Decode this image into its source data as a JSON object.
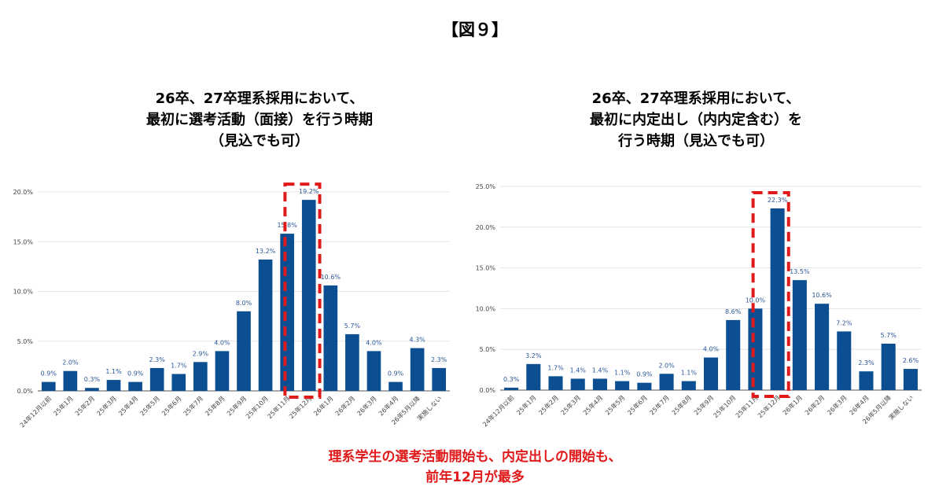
{
  "figure_label": "【図９】",
  "conclusion": {
    "line1": "理系学生の選考活動開始も、内定出しの開始も、",
    "line2": "前年12月が最多"
  },
  "colors": {
    "bar": "#0b4f92",
    "highlight": "#e01a1a",
    "grid": "#dddddd",
    "label": "#2b5797"
  },
  "chart_data": [
    {
      "type": "bar",
      "title_lines": [
        "26卒、27卒理系採用において、",
        "最初に選考活動（面接）を行う時期",
        "（見込でも可）"
      ],
      "categories": [
        "24年12月以前",
        "25年1月",
        "25年2月",
        "25年3月",
        "25年4月",
        "25年5月",
        "25年6月",
        "25年7月",
        "25年8月",
        "25年9月",
        "25年10月",
        "25年11月",
        "25年12月",
        "26年1月",
        "26年2月",
        "26年3月",
        "26年4月",
        "26年5月以降",
        "実施しない"
      ],
      "values": [
        0.9,
        2.0,
        0.3,
        1.1,
        0.9,
        2.3,
        1.7,
        2.9,
        4.0,
        8.0,
        13.2,
        15.8,
        19.2,
        10.6,
        5.7,
        4.0,
        0.9,
        4.3,
        2.3
      ],
      "data_labels": [
        "0.9%",
        "2.0%",
        "0.3%",
        "1.1%",
        "0.9%",
        "2.3%",
        "1.7%",
        "2.9%",
        "4.0%",
        "8.0%",
        "13.2%",
        "15.8%",
        "19.2%",
        "10.6%",
        "5.7%",
        "4.0%",
        "0.9%",
        "4.3%",
        "2.3%"
      ],
      "yticks": [
        0,
        5,
        10,
        15,
        20
      ],
      "ytick_labels": [
        "0.0%",
        "5.0%",
        "10.0%",
        "15.0%",
        "20.0%"
      ],
      "ylim": [
        0,
        20
      ],
      "highlight_index": 12,
      "grid": true
    },
    {
      "type": "bar",
      "title_lines": [
        "26卒、27卒理系採用において、",
        "最初に内定出し（内内定含む）を",
        "行う時期（見込でも可）"
      ],
      "categories": [
        "24年12月以前",
        "25年1月",
        "25年2月",
        "25年3月",
        "25年4月",
        "25年5月",
        "25年6月",
        "25年7月",
        "25年8月",
        "25年9月",
        "25年10月",
        "25年11月",
        "25年12月",
        "26年1月",
        "26年2月",
        "26年3月",
        "26年4月",
        "26年5月以降",
        "実施しない"
      ],
      "values": [
        0.3,
        3.2,
        1.7,
        1.4,
        1.4,
        1.1,
        0.9,
        2.0,
        1.1,
        4.0,
        8.6,
        10.0,
        22.3,
        13.5,
        10.6,
        7.2,
        2.3,
        5.7,
        2.6
      ],
      "data_labels": [
        "0.3%",
        "3.2%",
        "1.7%",
        "1.4%",
        "1.4%",
        "1.1%",
        "0.9%",
        "2.0%",
        "1.1%",
        "4.0%",
        "8.6%",
        "10.0%",
        "22.3%",
        "13.5%",
        "10.6%",
        "7.2%",
        "2.3%",
        "5.7%",
        "2.6%"
      ],
      "yticks": [
        0,
        5,
        10,
        15,
        20,
        25
      ],
      "ytick_labels": [
        "0.0%",
        "5.0%",
        "10.0%",
        "15.0%",
        "20.0%",
        "25.0%"
      ],
      "ylim": [
        0,
        25
      ],
      "highlight_index": 12,
      "grid": true
    }
  ]
}
